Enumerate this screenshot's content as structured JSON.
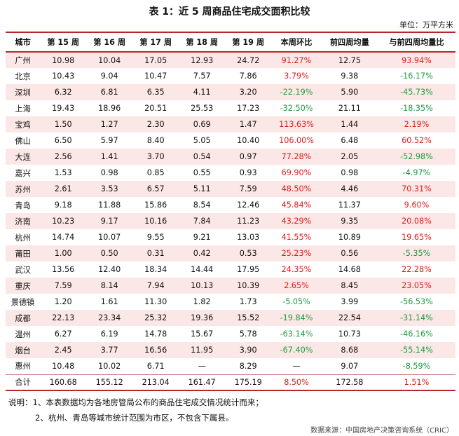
{
  "title": "表 1：近 5 周商品住宅成交面积比较",
  "unit": "单位：万平方米",
  "table": {
    "headers": [
      "城市",
      "第 15 周",
      "第 16 周",
      "第 17 周",
      "第 18 周",
      "第 19 周",
      "本周环比",
      "前四周均量",
      "与前四周均量比"
    ],
    "rows": [
      [
        "广州",
        "10.98",
        "10.04",
        "17.05",
        "12.93",
        "24.72",
        "91.27%",
        "12.75",
        "93.94%"
      ],
      [
        "北京",
        "10.43",
        "9.04",
        "10.47",
        "7.57",
        "7.86",
        "3.79%",
        "9.38",
        "-16.17%"
      ],
      [
        "深圳",
        "6.32",
        "6.81",
        "6.35",
        "4.11",
        "3.20",
        "-22.19%",
        "5.90",
        "-45.73%"
      ],
      [
        "上海",
        "19.43",
        "18.96",
        "20.51",
        "25.53",
        "17.23",
        "-32.50%",
        "21.11",
        "-18.35%"
      ],
      [
        "宝鸡",
        "1.50",
        "1.27",
        "2.30",
        "0.69",
        "1.47",
        "113.63%",
        "1.44",
        "2.19%"
      ],
      [
        "佛山",
        "6.50",
        "5.97",
        "8.40",
        "5.05",
        "10.40",
        "106.00%",
        "6.48",
        "60.52%"
      ],
      [
        "大连",
        "2.56",
        "1.41",
        "3.70",
        "0.54",
        "0.97",
        "77.28%",
        "2.05",
        "-52.98%"
      ],
      [
        "嘉兴",
        "1.53",
        "0.98",
        "0.85",
        "0.55",
        "0.93",
        "69.90%",
        "0.98",
        "-4.97%"
      ],
      [
        "苏州",
        "2.61",
        "3.53",
        "6.57",
        "5.11",
        "7.59",
        "48.50%",
        "4.46",
        "70.31%"
      ],
      [
        "青岛",
        "9.18",
        "11.88",
        "15.86",
        "8.54",
        "12.46",
        "45.84%",
        "11.37",
        "9.60%"
      ],
      [
        "济南",
        "10.23",
        "9.17",
        "10.16",
        "7.84",
        "11.23",
        "43.29%",
        "9.35",
        "20.08%"
      ],
      [
        "杭州",
        "14.74",
        "10.07",
        "9.55",
        "9.21",
        "13.03",
        "41.55%",
        "10.89",
        "19.65%"
      ],
      [
        "莆田",
        "1.00",
        "0.50",
        "0.31",
        "0.42",
        "0.53",
        "25.23%",
        "0.56",
        "-5.35%"
      ],
      [
        "武汉",
        "13.56",
        "12.40",
        "18.34",
        "14.44",
        "17.95",
        "24.35%",
        "14.68",
        "22.28%"
      ],
      [
        "重庆",
        "7.59",
        "8.14",
        "7.94",
        "10.13",
        "10.39",
        "2.65%",
        "8.45",
        "23.05%"
      ],
      [
        "景德镇",
        "1.20",
        "1.61",
        "11.30",
        "1.82",
        "1.73",
        "-5.05%",
        "3.99",
        "-56.53%"
      ],
      [
        "成都",
        "22.13",
        "23.34",
        "25.32",
        "19.36",
        "15.52",
        "-19.84%",
        "22.54",
        "-31.14%"
      ],
      [
        "温州",
        "6.27",
        "6.19",
        "14.78",
        "15.67",
        "5.78",
        "-63.14%",
        "10.73",
        "-46.16%"
      ],
      [
        "烟台",
        "2.45",
        "3.77",
        "16.56",
        "11.95",
        "3.90",
        "-67.40%",
        "8.68",
        "-55.14%"
      ],
      [
        "惠州",
        "10.48",
        "10.02",
        "6.71",
        "—",
        "8.29",
        "—",
        "9.07",
        "-8.59%"
      ],
      [
        "合计",
        "160.68",
        "155.12",
        "213.04",
        "161.47",
        "175.19",
        "8.50%",
        "172.58",
        "1.51%"
      ]
    ],
    "colors": {
      "positive": "#e21b1b",
      "negative": "#1a9b3e",
      "rule": "#b7262b",
      "band": "#fbe8e6"
    }
  },
  "notes": [
    "说明：1、本表数据均为各地房管局公布的商品住宅成交情况统计而来；",
    "2、杭州、青岛等城市统计范围为市区，不包含下属县。"
  ],
  "source": "数据来源：中国房地产决策咨询系统（CRIC）"
}
